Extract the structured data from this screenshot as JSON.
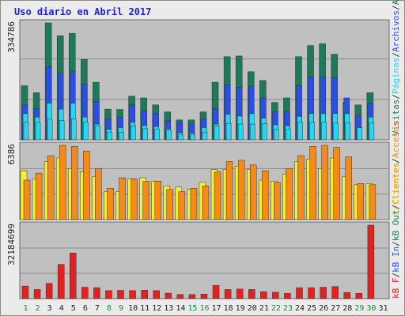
{
  "title": "Uso diario en Abril 2017",
  "colors": {
    "background": "#ebebeb",
    "panel": "#c0c0c0",
    "grid": "#8c8c8c",
    "title": "#1f1fd0",
    "visits": "#1a7a5a",
    "pages": "#2a4ee8",
    "hits": "#22d8f5",
    "bandwidth": "#e42020",
    "visitors": "#f2f230",
    "accesses": "#f58a18",
    "weekend_day": "#1a8a3a",
    "weekday": "#222222"
  },
  "side_labels": {
    "top": [
      "Visitas",
      "/",
      "Páginas",
      "/",
      "Archivos",
      "/",
      "Accesos"
    ],
    "middle": [
      "Visitantes",
      "/",
      "Accesos"
    ],
    "bottom": [
      "kB F",
      "/",
      "kB In",
      "/",
      "kB Out",
      "/",
      "Clientes"
    ]
  },
  "chart_data": [
    {
      "type": "bar",
      "title": "Uso diario en Abril 2017",
      "ylabel": "334786",
      "ylim": [
        0,
        334786
      ],
      "categories": [
        "1",
        "2",
        "3",
        "4",
        "5",
        "6",
        "7",
        "8",
        "9",
        "10",
        "11",
        "12",
        "13",
        "14",
        "15",
        "16",
        "17",
        "18",
        "19",
        "20",
        "21",
        "22",
        "23",
        "24",
        "25",
        "26",
        "27",
        "28",
        "29",
        "30",
        "31"
      ],
      "series": [
        {
          "name": "Visitas",
          "values": [
            155000,
            135000,
            334786,
            298000,
            305000,
            230000,
            165000,
            88000,
            87000,
            125000,
            120000,
            100000,
            80000,
            57000,
            57000,
            80000,
            165000,
            238000,
            240000,
            195000,
            170000,
            107000,
            120000,
            238000,
            270000,
            275000,
            245000,
            108000,
            100000,
            135000,
            0
          ]
        },
        {
          "name": "Páginas",
          "values": [
            100000,
            90000,
            210000,
            190000,
            195000,
            160000,
            110000,
            60000,
            65000,
            100000,
            83000,
            75000,
            55000,
            48000,
            45000,
            60000,
            90000,
            157000,
            150000,
            152000,
            120000,
            80000,
            80000,
            155000,
            180000,
            180000,
            178000,
            120000,
            70000,
            105000,
            0
          ]
        },
        {
          "name": "Archivos",
          "values": [
            75000,
            65000,
            105000,
            88000,
            105000,
            65000,
            45000,
            30000,
            35000,
            50000,
            41000,
            38000,
            31000,
            20000,
            19000,
            35000,
            45000,
            73000,
            68000,
            75000,
            62000,
            43000,
            40000,
            67000,
            75000,
            75000,
            75000,
            75000,
            35000,
            65000,
            0
          ]
        },
        {
          "name": "Accesos",
          "values": [
            50000,
            50000,
            60000,
            55000,
            60000,
            50000,
            40000,
            22000,
            22000,
            40000,
            32000,
            30000,
            28000,
            14000,
            14000,
            22000,
            40000,
            47000,
            45000,
            45000,
            46000,
            30000,
            30000,
            50000,
            50000,
            50000,
            48000,
            48000,
            35000,
            48000,
            0
          ]
        }
      ],
      "xlabel": "",
      "grid": true
    },
    {
      "type": "bar",
      "ylabel": "6386",
      "ylim": [
        0,
        6386
      ],
      "categories": [
        "1",
        "2",
        "3",
        "4",
        "5",
        "6",
        "7",
        "8",
        "9",
        "10",
        "11",
        "12",
        "13",
        "14",
        "15",
        "16",
        "17",
        "18",
        "19",
        "20",
        "21",
        "22",
        "23",
        "24",
        "25",
        "26",
        "27",
        "28",
        "29",
        "30",
        "31"
      ],
      "series": [
        {
          "name": "Visitantes",
          "values": [
            4200,
            3500,
            5000,
            5300,
            4400,
            4100,
            3700,
            2400,
            2400,
            3500,
            3600,
            3300,
            2900,
            2800,
            2600,
            3200,
            4300,
            4300,
            4600,
            4300,
            3400,
            3300,
            3900,
            5000,
            5200,
            4400,
            5300,
            3700,
            3000,
            3100,
            0
          ]
        },
        {
          "name": "Accesos",
          "values": [
            3400,
            4000,
            5500,
            6386,
            6300,
            5900,
            4400,
            2700,
            3600,
            3500,
            3300,
            3300,
            2600,
            2400,
            2700,
            2900,
            4100,
            5000,
            5100,
            4700,
            4200,
            3200,
            4400,
            5500,
            6300,
            6386,
            6200,
            5400,
            3100,
            3000,
            0
          ]
        }
      ],
      "xlabel": "",
      "grid": true
    },
    {
      "type": "bar",
      "ylabel": "32184699",
      "ylim": [
        0,
        32184699
      ],
      "categories": [
        "1",
        "2",
        "3",
        "4",
        "5",
        "6",
        "7",
        "8",
        "9",
        "10",
        "11",
        "12",
        "13",
        "14",
        "15",
        "16",
        "17",
        "18",
        "19",
        "20",
        "21",
        "22",
        "23",
        "24",
        "25",
        "26",
        "27",
        "28",
        "29",
        "30",
        "31"
      ],
      "series": [
        {
          "name": "kB F",
          "values": [
            5500000,
            4000000,
            6700000,
            15000000,
            20000000,
            5000000,
            4800000,
            3500000,
            3600000,
            3500000,
            3700000,
            3500000,
            2400000,
            1800000,
            1800000,
            2000000,
            5800000,
            4000000,
            4200000,
            4000000,
            3000000,
            2800000,
            2300000,
            4800000,
            4800000,
            5000000,
            5300000,
            2700000,
            2300000,
            32184699,
            0
          ]
        }
      ],
      "xlabel": "",
      "grid": true
    }
  ],
  "weekend_days": [
    "1",
    "2",
    "8",
    "9",
    "15",
    "16",
    "22",
    "23",
    "29",
    "30"
  ]
}
